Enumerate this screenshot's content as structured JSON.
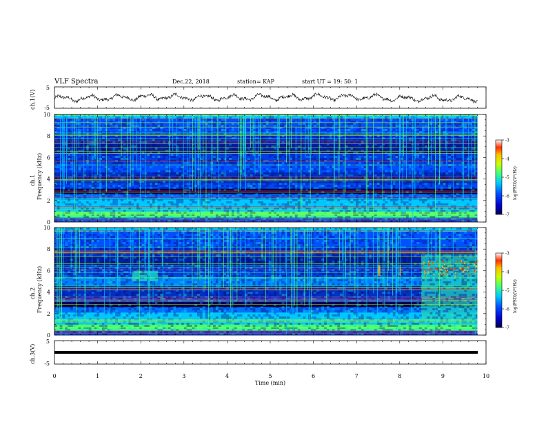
{
  "header": {
    "title": "VLF Spectra",
    "date": "Dec.22, 2018",
    "station": "station= KAP",
    "start": "start  UT =    19: 50: 1"
  },
  "colors": {
    "trace": "#000000",
    "axis": "#000000",
    "colormap": [
      "#00004d",
      "#0000c8",
      "#0050ff",
      "#00c8ff",
      "#40ff80",
      "#c8ff00",
      "#ffc000",
      "#ff3000",
      "#ffffff"
    ]
  },
  "chart_data": [
    {
      "type": "line",
      "panel": "ch1-waveform",
      "ylabel": "ch.1(V)",
      "ylim": [
        -5,
        5
      ],
      "yticks": [
        "5",
        "-5"
      ],
      "x": [
        0,
        0.5,
        1,
        1.5,
        2,
        2.5,
        3,
        3.5,
        4,
        4.5,
        5,
        5.5,
        6,
        6.5,
        7,
        7.5,
        8,
        8.5,
        9,
        9.5,
        9.8
      ],
      "values": [
        -0.5,
        -0.5,
        -0.3,
        0.0,
        0.2,
        0.3,
        0.1,
        -0.2,
        0.0,
        0.1,
        0.2,
        0.0,
        0.3,
        0.1,
        0.2,
        0.0,
        -0.5,
        -0.4,
        -0.5,
        -0.6,
        -0.7
      ]
    },
    {
      "type": "heatmap",
      "panel": "ch1-spectrogram",
      "ylabel": "ch.1\nFrequency (kHz)",
      "ylim": [
        0,
        10
      ],
      "yticks": [
        "0",
        "2",
        "4",
        "6",
        "8",
        "10"
      ],
      "colorbar": {
        "label": "log(PSD)(V²/Hz)",
        "range": [
          -7,
          -3
        ],
        "ticks": [
          "-3",
          "-4",
          "-5",
          "-6",
          "-7"
        ]
      }
    },
    {
      "type": "heatmap",
      "panel": "ch2-spectrogram",
      "ylabel": "ch.2\nFrequency (kHz)",
      "ylim": [
        0,
        10
      ],
      "yticks": [
        "0",
        "2",
        "4",
        "6",
        "8",
        "10"
      ],
      "colorbar": {
        "label": "log(PSD)(V²/Hz)",
        "range": [
          -7,
          -3
        ],
        "ticks": [
          "-3",
          "-4",
          "-5",
          "-6",
          "-7"
        ]
      }
    },
    {
      "type": "line",
      "panel": "ch3-waveform",
      "ylabel": "ch.3(V)",
      "ylim": [
        -5,
        5
      ],
      "yticks": [
        "5",
        "-5"
      ],
      "x": [
        0,
        9.8
      ],
      "values": [
        0,
        0
      ]
    }
  ],
  "xaxis": {
    "label": "Time (min)",
    "xlim": [
      0,
      10
    ],
    "ticks": [
      "0",
      "1",
      "2",
      "3",
      "4",
      "5",
      "6",
      "7",
      "8",
      "9",
      "10"
    ]
  }
}
